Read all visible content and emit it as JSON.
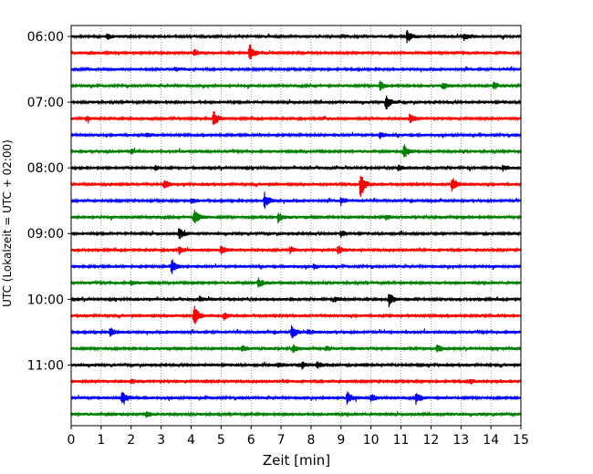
{
  "chart_data": {
    "type": "line",
    "title": "",
    "xlabel": "Zeit  [min]",
    "ylabel": "UTC (Lokalzeit = UTC + 02:00)",
    "xlim": [
      0,
      15
    ],
    "x_ticks": [
      "0",
      "1",
      "2",
      "3",
      "4",
      "5",
      "6",
      "7",
      "8",
      "9",
      "10",
      "11",
      "12",
      "13",
      "14",
      "15"
    ],
    "y_ticks": [
      "06:00",
      "07:00",
      "08:00",
      "09:00",
      "10:00",
      "11:00"
    ],
    "grid": "vertical dotted",
    "trace_interval_min": 15,
    "colors": [
      "#000000",
      "#ff0000",
      "#0000ff",
      "#008000"
    ],
    "series": [
      {
        "start": "06:00",
        "color": "#000000",
        "events": [
          {
            "t": 11.2,
            "a": 1.0
          },
          {
            "t": 13.1,
            "a": 0.5
          },
          {
            "t": 1.2,
            "a": 0.4
          }
        ]
      },
      {
        "start": "06:15",
        "color": "#ff0000",
        "events": [
          {
            "t": 5.95,
            "a": 1.6
          },
          {
            "t": 4.1,
            "a": 0.5
          }
        ]
      },
      {
        "start": "06:30",
        "color": "#0000ff",
        "events": [
          {
            "t": 3.5,
            "a": 0.3
          }
        ]
      },
      {
        "start": "06:45",
        "color": "#008000",
        "events": [
          {
            "t": 10.3,
            "a": 0.8
          },
          {
            "t": 12.4,
            "a": 0.6
          },
          {
            "t": 14.1,
            "a": 0.6
          }
        ]
      },
      {
        "start": "07:00",
        "color": "#000000",
        "events": [
          {
            "t": 10.5,
            "a": 1.3
          }
        ]
      },
      {
        "start": "07:15",
        "color": "#ff0000",
        "events": [
          {
            "t": 4.75,
            "a": 1.4
          },
          {
            "t": 11.3,
            "a": 0.9
          },
          {
            "t": 0.5,
            "a": 0.4
          }
        ]
      },
      {
        "start": "07:30",
        "color": "#0000ff",
        "events": [
          {
            "t": 10.3,
            "a": 0.5
          },
          {
            "t": 2.5,
            "a": 0.3
          }
        ]
      },
      {
        "start": "07:45",
        "color": "#008000",
        "events": [
          {
            "t": 11.1,
            "a": 1.1
          },
          {
            "t": 2.0,
            "a": 0.4
          }
        ]
      },
      {
        "start": "08:00",
        "color": "#000000",
        "events": [
          {
            "t": 10.9,
            "a": 0.4
          },
          {
            "t": 14.4,
            "a": 0.4
          },
          {
            "t": 2.8,
            "a": 0.3
          }
        ]
      },
      {
        "start": "08:15",
        "color": "#ff0000",
        "events": [
          {
            "t": 9.65,
            "a": 2.2
          },
          {
            "t": 12.7,
            "a": 1.3
          },
          {
            "t": 3.1,
            "a": 0.8
          }
        ]
      },
      {
        "start": "08:30",
        "color": "#0000ff",
        "events": [
          {
            "t": 6.45,
            "a": 1.2
          },
          {
            "t": 9.0,
            "a": 0.6
          },
          {
            "t": 4.0,
            "a": 0.4
          }
        ]
      },
      {
        "start": "08:45",
        "color": "#008000",
        "events": [
          {
            "t": 4.1,
            "a": 1.3
          },
          {
            "t": 6.9,
            "a": 0.8
          },
          {
            "t": 10.5,
            "a": 0.4
          }
        ]
      },
      {
        "start": "09:00",
        "color": "#000000",
        "events": [
          {
            "t": 3.6,
            "a": 1.1
          },
          {
            "t": 9.0,
            "a": 0.5
          }
        ]
      },
      {
        "start": "09:15",
        "color": "#ff0000",
        "events": [
          {
            "t": 5.0,
            "a": 0.8
          },
          {
            "t": 8.9,
            "a": 0.8
          },
          {
            "t": 3.6,
            "a": 0.6
          },
          {
            "t": 7.3,
            "a": 0.5
          }
        ]
      },
      {
        "start": "09:30",
        "color": "#0000ff",
        "events": [
          {
            "t": 3.35,
            "a": 1.3
          },
          {
            "t": 8.1,
            "a": 0.4
          }
        ]
      },
      {
        "start": "09:45",
        "color": "#008000",
        "events": [
          {
            "t": 6.25,
            "a": 0.8
          },
          {
            "t": 2.0,
            "a": 0.3
          }
        ]
      },
      {
        "start": "10:00",
        "color": "#000000",
        "events": [
          {
            "t": 10.6,
            "a": 1.1
          },
          {
            "t": 8.8,
            "a": 0.4
          },
          {
            "t": 4.3,
            "a": 0.3
          }
        ]
      },
      {
        "start": "10:15",
        "color": "#ff0000",
        "events": [
          {
            "t": 4.1,
            "a": 1.7
          },
          {
            "t": 5.1,
            "a": 0.6
          }
        ]
      },
      {
        "start": "10:30",
        "color": "#0000ff",
        "events": [
          {
            "t": 7.35,
            "a": 1.3
          },
          {
            "t": 1.3,
            "a": 0.8
          },
          {
            "t": 7.9,
            "a": 0.4
          }
        ]
      },
      {
        "start": "10:45",
        "color": "#008000",
        "events": [
          {
            "t": 5.7,
            "a": 0.6
          },
          {
            "t": 7.4,
            "a": 0.7
          },
          {
            "t": 12.2,
            "a": 0.7
          },
          {
            "t": 8.5,
            "a": 0.4
          }
        ]
      },
      {
        "start": "11:00",
        "color": "#000000",
        "events": [
          {
            "t": 7.7,
            "a": 0.5
          },
          {
            "t": 8.2,
            "a": 0.6
          },
          {
            "t": 6.9,
            "a": 0.4
          }
        ]
      },
      {
        "start": "11:15",
        "color": "#ff0000",
        "events": [
          {
            "t": 13.3,
            "a": 0.4
          },
          {
            "t": 2.0,
            "a": 0.3
          }
        ]
      },
      {
        "start": "11:30",
        "color": "#0000ff",
        "events": [
          {
            "t": 1.7,
            "a": 1.2
          },
          {
            "t": 9.2,
            "a": 1.1
          },
          {
            "t": 11.5,
            "a": 1.0
          },
          {
            "t": 10.0,
            "a": 0.6
          }
        ]
      },
      {
        "start": "11:45",
        "color": "#008000",
        "events": [
          {
            "t": 2.5,
            "a": 0.4
          }
        ]
      }
    ]
  }
}
